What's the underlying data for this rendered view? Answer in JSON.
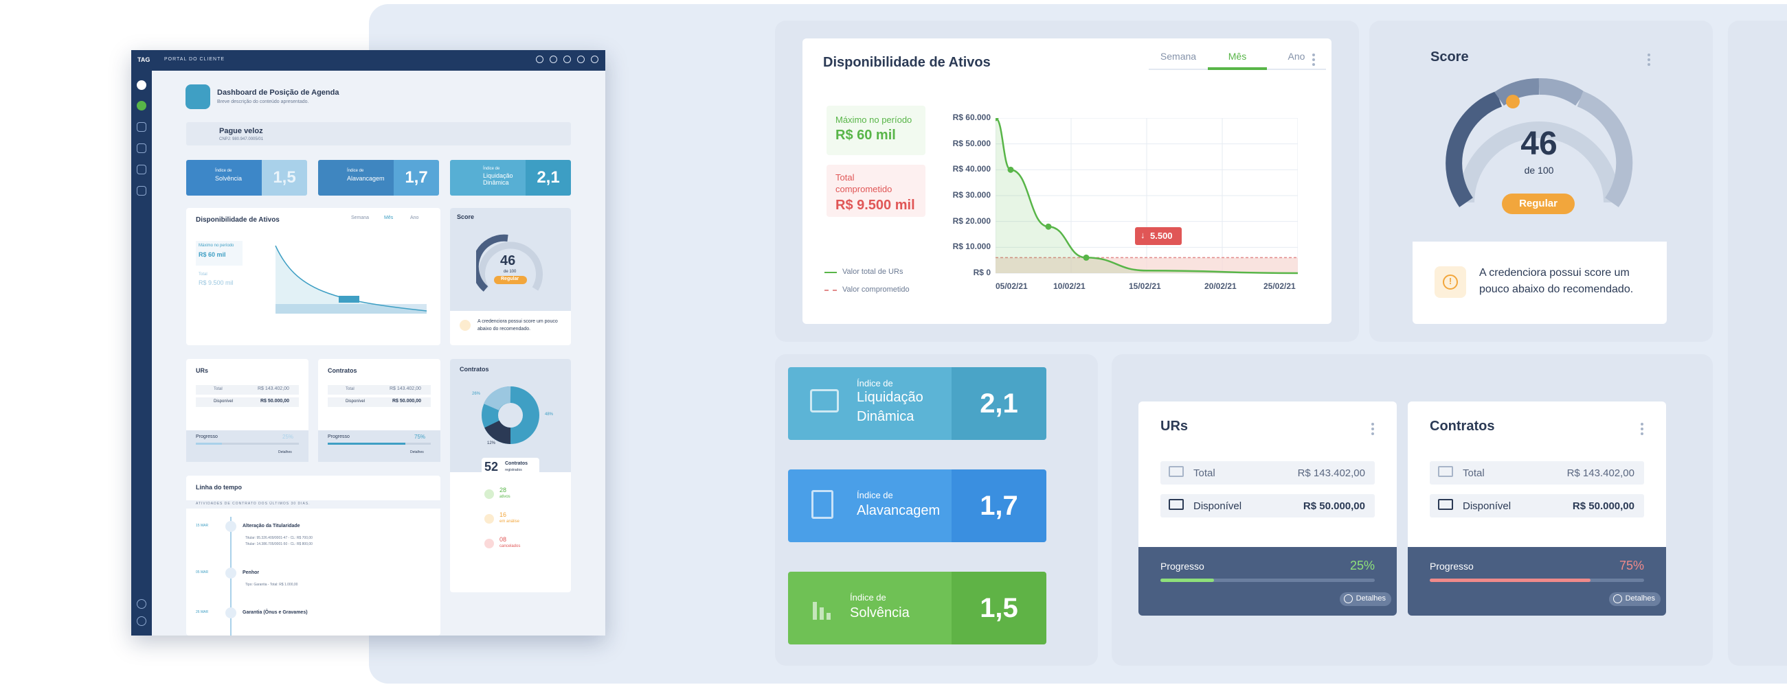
{
  "mini": {
    "logo": "TAG",
    "portal": "PORTAL DO CLIENTE",
    "header_title": "Dashboard de Posição de Agenda",
    "header_sub": "Breve descrição do conteúdo apresentado.",
    "company": "Pague veloz",
    "cnpj": "CNPJ: 980.947.0005/01",
    "kpis": [
      {
        "label_small": "Índice de",
        "label": "Solvência",
        "value": "1,5"
      },
      {
        "label_small": "Índice de",
        "label": "Alavancagem",
        "value": "1,7"
      },
      {
        "label_small": "Índice de",
        "label": "Liquidação Dinâmica",
        "value": "2,1"
      }
    ],
    "disp_title": "Disponibilidade de Ativos",
    "tabs": [
      "Semana",
      "Mês",
      "Ano"
    ],
    "max_label": "Máximo no período",
    "max_value": "R$ 60 mil",
    "total_label": "Total",
    "total_value": "R$ 9.500 mil",
    "score_title": "Score",
    "score_value": "46",
    "score_of": "de 100",
    "score_badge": "Regular",
    "score_note": "A credenciora possui score um pouco abaixo do recomendado.",
    "urs_title": "URs",
    "contratos_title": "Contratos",
    "total": "Total",
    "disponivel": "Disponível",
    "total_val": "R$ 143.402,00",
    "disp_val": "R$ 50.000,00",
    "progresso": "Progresso",
    "urs_pct": "25%",
    "contratos_pct": "75%",
    "detalhes": "Detalhes",
    "contratos3_title": "Contratos",
    "pie_labels": [
      "26%",
      "48%",
      "12%"
    ],
    "contratos_count": "52",
    "contratos_count_label": "Contratos",
    "contratos_count_sub": "registrados",
    "status": [
      {
        "count": "28",
        "label": "ativos"
      },
      {
        "count": "16",
        "label": "em análise"
      },
      {
        "count": "08",
        "label": "cancelados"
      }
    ],
    "timeline_title": "Linha do tempo",
    "timeline_sub": "ATIVIDADES DE CONTRATO DOS ÚLTIMOS 30 DIAS.",
    "timeline": [
      {
        "date": "15 MAR",
        "title": "Alteração da Titularidade",
        "lines": [
          "Titular: 95.326.409/0001-47 - CL: R$ 700,00",
          "Titular: 14.386.705/0001-50 - CL: R$ 800,00"
        ]
      },
      {
        "date": "05 MAR",
        "title": "Penhor",
        "lines": [
          "Tipo: Garantia - Total: R$ 1.000,00"
        ]
      },
      {
        "date": "26 MAR",
        "title": "Garantia (Ônus e Gravames)",
        "lines": []
      }
    ]
  },
  "availability": {
    "title": "Disponibilidade de Ativos",
    "tabs": [
      "Semana",
      "Mês",
      "Ano"
    ],
    "active_tab": "Mês",
    "max_label": "Máximo no período",
    "max_value": "R$ 60 mil",
    "committed_label": "Total comprometido",
    "committed_value": "R$ 9.500 mil",
    "legend_total": "Valor total de URs",
    "legend_committed": "Valor comprometido",
    "tooltip": "5.500"
  },
  "chart_data": {
    "type": "line",
    "x": [
      "05/02/21",
      "10/02/21",
      "15/02/21",
      "20/02/21",
      "25/02/21"
    ],
    "y_ticks": [
      "R$ 60.000",
      "R$ 50.000",
      "R$ 40.000",
      "R$ 30.000",
      "R$ 20.000",
      "R$ 10.000",
      "R$ 0"
    ],
    "ylim": [
      0,
      60000
    ],
    "series": [
      {
        "name": "Valor total de URs",
        "points": [
          [
            0,
            60000
          ],
          [
            1,
            40000
          ],
          [
            3.5,
            18000
          ],
          [
            6,
            6000
          ],
          [
            10,
            1000
          ],
          [
            20,
            0
          ]
        ],
        "color": "#58b548"
      },
      {
        "name": "Valor comprometido",
        "points": [
          [
            0,
            6000
          ],
          [
            20,
            6000
          ]
        ],
        "color": "#e28a8a"
      }
    ],
    "x_range": [
      0,
      20
    ]
  },
  "score": {
    "title": "Score",
    "value": 46,
    "value_text": "46",
    "of_text": "de 100",
    "badge": "Regular",
    "note": "A credenciora possui score um pouco abaixo do recomendado."
  },
  "kpis": [
    {
      "small": "Índice de",
      "label1": "Liquidação",
      "label2": "Dinâmica",
      "value": "2,1",
      "color_left": "#5cb4d6",
      "color_right": "#4aa4c7"
    },
    {
      "small": "Índice de",
      "label1": "Alavancagem",
      "label2": "",
      "value": "1,7",
      "color_left": "#4a9fe8",
      "color_right": "#3a8fe0"
    },
    {
      "small": "Índice de",
      "label1": "Solvência",
      "label2": "",
      "value": "1,5",
      "color_left": "#6fc155",
      "color_right": "#5fb346"
    }
  ],
  "urs": {
    "title": "URs",
    "total_label": "Total",
    "total_value": "R$ 143.402,00",
    "available_label": "Disponível",
    "available_value": "R$ 50.000,00",
    "progress_label": "Progresso",
    "progress_pct": "25%",
    "progress": 0.25,
    "details": "Detalhes"
  },
  "contratos": {
    "title": "Contratos",
    "total_label": "Total",
    "total_value": "R$ 143.402,00",
    "available_label": "Disponível",
    "available_value": "R$ 50.000,00",
    "progress_label": "Progresso",
    "progress_pct": "75%",
    "progress": 0.75,
    "details": "Detalhes"
  },
  "colors": {
    "green": "#58b548",
    "red": "#e05656",
    "orange": "#f2a63c",
    "navy": "#4a5f82"
  }
}
